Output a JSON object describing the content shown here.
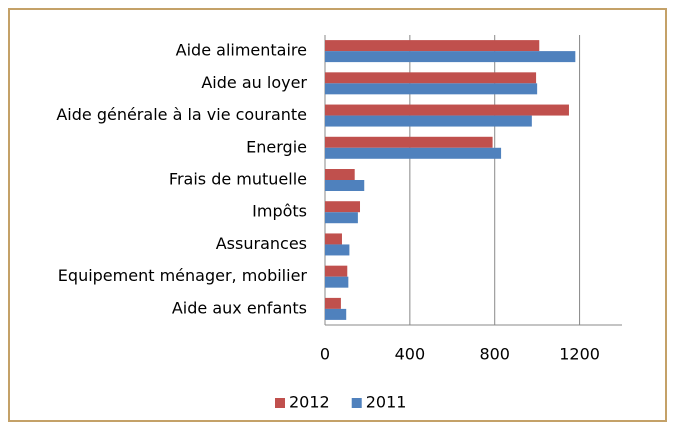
{
  "chart_data": {
    "type": "bar",
    "orientation": "horizontal",
    "categories": [
      "Aide alimentaire",
      "Aide au loyer",
      "Aide générale à la vie courante",
      "Energie",
      "Frais de mutuelle",
      "Impôts",
      "Assurances",
      "Equipement ménager, mobilier",
      "Aide aux enfants"
    ],
    "series": [
      {
        "name": "2012",
        "color": "#c0504d",
        "values": [
          1010,
          995,
          1150,
          790,
          140,
          165,
          80,
          105,
          75
        ]
      },
      {
        "name": "2011",
        "color": "#4f81bd",
        "values": [
          1180,
          1000,
          975,
          830,
          185,
          155,
          115,
          110,
          100
        ]
      }
    ],
    "xlim": [
      0,
      1400
    ],
    "xticks": [
      0,
      400,
      800,
      1200
    ],
    "grid": true,
    "legend": "bottom"
  }
}
